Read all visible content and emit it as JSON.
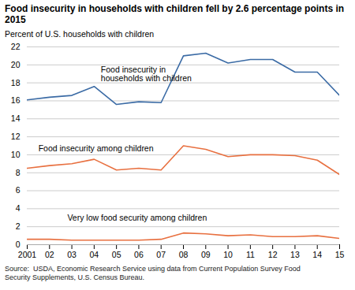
{
  "chart_data": {
    "type": "line",
    "title": "Food insecurity in households with children fell by 2.6 percentage points in 2015",
    "y_label": "Percent of U.S. households with children",
    "source": "Source:  USDA, Economic Research Service using data from Current Population Survey Food\nSecurity Supplements, U.S. Census Bureau.",
    "x": [
      2001,
      2002,
      2003,
      2004,
      2005,
      2006,
      2007,
      2008,
      2009,
      2010,
      2011,
      2012,
      2013,
      2014,
      2015
    ],
    "series": [
      {
        "name": "Food insecurity in\nhouseholds with children",
        "color": "#3B6BA5",
        "values": [
          16.1,
          16.4,
          16.6,
          17.6,
          15.6,
          15.9,
          15.8,
          21.0,
          21.3,
          20.2,
          20.6,
          20.6,
          19.2,
          19.2,
          16.6
        ]
      },
      {
        "name": "Food insecurity among children",
        "color": "#E87040",
        "values": [
          8.5,
          8.8,
          9.0,
          9.5,
          8.3,
          8.5,
          8.3,
          11.0,
          10.6,
          9.8,
          10.0,
          10.0,
          9.9,
          9.4,
          7.8
        ]
      },
      {
        "name": "Very low food security among children",
        "color": "#E87040",
        "values": [
          0.6,
          0.6,
          0.5,
          0.5,
          0.5,
          0.5,
          0.6,
          1.3,
          1.2,
          1.0,
          1.1,
          0.9,
          0.9,
          1.0,
          0.7
        ]
      }
    ],
    "annotations": [
      {
        "text": "Food insecurity in\nhouseholds with children",
        "x": 2004.3,
        "y": 19.8
      },
      {
        "text": "Food insecurity among children",
        "x": 2001.5,
        "y": 11.0
      },
      {
        "text": "Very low food security among children",
        "x": 2002.8,
        "y": 3.3
      }
    ],
    "xlim": [
      2001,
      2015
    ],
    "xticks": [
      2001,
      {
        "value": 2002,
        "label": "02"
      },
      {
        "value": 2003,
        "label": "03"
      },
      {
        "value": 2004,
        "label": "04"
      },
      {
        "value": 2005,
        "label": "05"
      },
      {
        "value": 2006,
        "label": "06"
      },
      {
        "value": 2007,
        "label": "07"
      },
      {
        "value": 2008,
        "label": "08"
      },
      {
        "value": 2009,
        "label": "09"
      },
      {
        "value": 2010,
        "label": "10"
      },
      {
        "value": 2011,
        "label": "11"
      },
      {
        "value": 2012,
        "label": "12"
      },
      {
        "value": 2013,
        "label": "13"
      },
      {
        "value": 2014,
        "label": "14"
      },
      {
        "value": 2015,
        "label": "15"
      }
    ],
    "ylim": [
      0,
      22
    ],
    "yticks": [
      0,
      2,
      4,
      6,
      8,
      10,
      12,
      14,
      16,
      18,
      20,
      22
    ],
    "grid": "y"
  }
}
